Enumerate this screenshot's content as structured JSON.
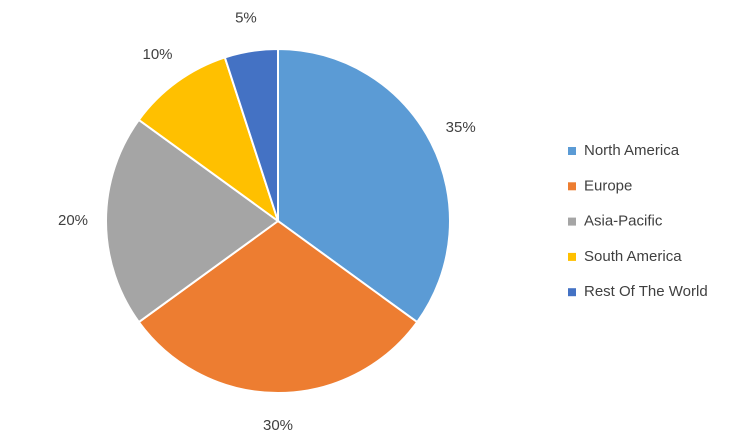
{
  "chart_data": {
    "type": "pie",
    "categories": [
      "North America",
      "Europe",
      "Asia-Pacific",
      "South America",
      "Rest Of The World"
    ],
    "values": [
      35,
      30,
      20,
      10,
      5
    ],
    "value_labels": [
      "35%",
      "30%",
      "20%",
      "10%",
      "5%"
    ],
    "colors": [
      "#5b9bd5",
      "#ed7d31",
      "#a5a5a5",
      "#ffc000",
      "#4472c4"
    ],
    "legend": "right"
  }
}
